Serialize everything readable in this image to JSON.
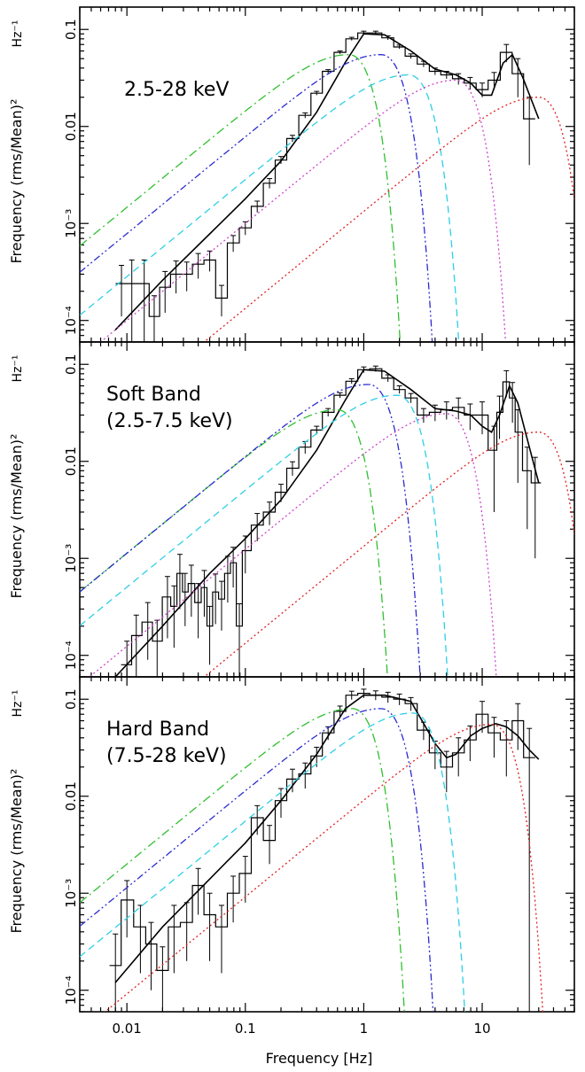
{
  "figure": {
    "xlabel": "Frequency [Hz]",
    "ylabel": "Frequency (rms/Mean)²",
    "yunit": "Hz⁻¹"
  },
  "chart_data": [
    {
      "type": "line",
      "panel_label": [
        "2.5-28 keV"
      ],
      "xscale": "log",
      "yscale": "log",
      "xlim": [
        0.004,
        60
      ],
      "ylim": [
        6e-05,
        0.17
      ],
      "xticks": [
        "0.01",
        "0.1",
        "1",
        "10"
      ],
      "yticks": [
        "10⁻⁴",
        "10⁻³",
        "0.01",
        "0.1"
      ],
      "series": [
        {
          "role": "data",
          "color": "#000000",
          "x": [
            0.009,
            0.011,
            0.014,
            0.017,
            0.021,
            0.026,
            0.032,
            0.04,
            0.05,
            0.063,
            0.079,
            0.1,
            0.126,
            0.16,
            0.2,
            0.25,
            0.32,
            0.4,
            0.5,
            0.63,
            0.79,
            1.0,
            1.26,
            1.6,
            2.0,
            2.5,
            3.2,
            4.0,
            5.0,
            6.3,
            7.9,
            10,
            12.6,
            16,
            20,
            25
          ],
          "y": [
            0.00024,
            0.00024,
            0.00024,
            0.00011,
            0.00022,
            0.0003,
            0.0003,
            0.00038,
            0.00042,
            0.00017,
            0.00063,
            0.0009,
            0.0015,
            0.0026,
            0.0045,
            0.0075,
            0.013,
            0.022,
            0.037,
            0.058,
            0.08,
            0.092,
            0.092,
            0.082,
            0.066,
            0.053,
            0.044,
            0.037,
            0.034,
            0.031,
            0.028,
            0.024,
            0.03,
            0.058,
            0.035,
            0.012
          ],
          "err": [
            0.00013,
            0.00018,
            0.00018,
            7e-05,
            0.0001,
            0.00011,
            0.0001,
            0.00011,
            0.0001,
            6e-05,
            0.00012,
            0.00014,
            0.0002,
            0.0003,
            0.0004,
            0.0006,
            0.0008,
            0.001,
            0.0015,
            0.002,
            0.003,
            0.004,
            0.004,
            0.004,
            0.003,
            0.003,
            0.003,
            0.003,
            0.003,
            0.004,
            0.004,
            0.004,
            0.006,
            0.012,
            0.015,
            0.008
          ]
        },
        {
          "role": "total-model",
          "color": "#000000",
          "x": [
            0.008,
            0.02,
            0.05,
            0.1,
            0.2,
            0.4,
            0.7,
            1.0,
            1.5,
            2.5,
            4,
            6,
            8,
            10,
            12,
            15,
            18,
            22,
            30
          ],
          "y": [
            8e-05,
            0.00026,
            0.00078,
            0.0018,
            0.0044,
            0.014,
            0.046,
            0.09,
            0.088,
            0.06,
            0.039,
            0.034,
            0.028,
            0.021,
            0.021,
            0.045,
            0.055,
            0.032,
            0.012
          ]
        },
        {
          "role": "component",
          "color": "#2fbf2f",
          "style": "dash-dot",
          "peak": 0.055,
          "nu_max": 0.75
        },
        {
          "role": "component",
          "color": "#2b2bd0",
          "style": "dash-dot-dot",
          "peak": 0.055,
          "nu_max": 1.4
        },
        {
          "role": "component",
          "color": "#2ccfe6",
          "style": "dashed",
          "peak": 0.034,
          "nu_max": 2.4
        },
        {
          "role": "component",
          "color": "#cc44cc",
          "style": "dotted",
          "peak": 0.03,
          "nu_max": 6.0
        },
        {
          "role": "component",
          "color": "#e02020",
          "style": "dotted",
          "peak": 0.02,
          "nu_max": 30
        }
      ]
    },
    {
      "type": "line",
      "panel_label": [
        "Soft Band",
        "(2.5-7.5 keV)"
      ],
      "xscale": "log",
      "yscale": "log",
      "xlim": [
        0.004,
        60
      ],
      "ylim": [
        6e-05,
        0.17
      ],
      "xticks": [
        "0.01",
        "0.1",
        "1",
        "10"
      ],
      "yticks": [
        "10⁻⁴",
        "10⁻³",
        "0.01",
        "0.1"
      ],
      "series": [
        {
          "role": "data",
          "color": "#000000",
          "x": [
            0.01,
            0.012,
            0.015,
            0.018,
            0.022,
            0.025,
            0.028,
            0.031,
            0.035,
            0.04,
            0.045,
            0.05,
            0.056,
            0.063,
            0.071,
            0.079,
            0.089,
            0.1,
            0.126,
            0.16,
            0.2,
            0.25,
            0.32,
            0.4,
            0.5,
            0.63,
            0.79,
            1.0,
            1.26,
            1.6,
            2.0,
            2.5,
            3.2,
            4.0,
            5.0,
            6.3,
            7.9,
            10,
            12.6,
            14,
            16,
            18,
            20,
            24,
            28
          ],
          "y": [
            8e-05,
            0.00016,
            0.00022,
            0.00014,
            0.0004,
            0.00032,
            0.0007,
            0.00045,
            0.00055,
            0.00035,
            0.0005,
            0.0002,
            0.00045,
            0.00038,
            0.0007,
            0.0009,
            0.0002,
            0.0012,
            0.0022,
            0.003,
            0.0048,
            0.0085,
            0.014,
            0.021,
            0.032,
            0.048,
            0.067,
            0.088,
            0.09,
            0.072,
            0.055,
            0.045,
            0.03,
            0.032,
            0.034,
            0.036,
            0.03,
            0.03,
            0.013,
            0.032,
            0.066,
            0.045,
            0.02,
            0.008,
            0.006
          ],
          "err": [
            6e-05,
            0.0001,
            0.00013,
            9e-05,
            0.00025,
            0.0002,
            0.0004,
            0.00025,
            0.0003,
            0.0002,
            0.00025,
            0.00012,
            0.00024,
            0.0002,
            0.00035,
            0.0004,
            0.00014,
            0.0005,
            0.0007,
            0.0008,
            0.001,
            0.0014,
            0.002,
            0.002,
            0.003,
            0.003,
            0.004,
            0.006,
            0.006,
            0.006,
            0.005,
            0.005,
            0.005,
            0.006,
            0.007,
            0.009,
            0.009,
            0.011,
            0.01,
            0.015,
            0.02,
            0.02,
            0.014,
            0.006,
            0.005
          ]
        },
        {
          "role": "total-model",
          "color": "#000000",
          "x": [
            0.008,
            0.02,
            0.05,
            0.1,
            0.2,
            0.4,
            0.7,
            1.0,
            1.5,
            2.5,
            4,
            6,
            8,
            10,
            12,
            14,
            17,
            20,
            25,
            30
          ],
          "y": [
            6e-05,
            0.0002,
            0.0007,
            0.0016,
            0.004,
            0.013,
            0.043,
            0.088,
            0.085,
            0.055,
            0.035,
            0.033,
            0.03,
            0.023,
            0.02,
            0.03,
            0.06,
            0.04,
            0.014,
            0.006
          ]
        },
        {
          "role": "component",
          "color": "#2fbf2f",
          "style": "dash-dot",
          "peak": 0.034,
          "nu_max": 0.6
        },
        {
          "role": "component",
          "color": "#2b2bd0",
          "style": "dash-dot-dot",
          "peak": 0.062,
          "nu_max": 1.1
        },
        {
          "role": "component",
          "color": "#2ccfe6",
          "style": "dashed",
          "peak": 0.048,
          "nu_max": 1.9
        },
        {
          "role": "component",
          "color": "#cc44cc",
          "style": "dotted",
          "peak": 0.031,
          "nu_max": 5.0
        },
        {
          "role": "component",
          "color": "#e02020",
          "style": "dotted",
          "peak": 0.02,
          "nu_max": 30
        }
      ]
    },
    {
      "type": "line",
      "panel_label": [
        "Hard Band",
        "(7.5-28 keV)"
      ],
      "xscale": "log",
      "yscale": "log",
      "xlim": [
        0.004,
        60
      ],
      "ylim": [
        6e-05,
        0.17
      ],
      "xticks": [
        "0.01",
        "0.1",
        "1",
        "10"
      ],
      "yticks": [
        "10⁻⁴",
        "10⁻³",
        "0.01",
        "0.1"
      ],
      "series": [
        {
          "role": "data",
          "color": "#000000",
          "x": [
            0.008,
            0.01,
            0.013,
            0.016,
            0.02,
            0.025,
            0.032,
            0.04,
            0.05,
            0.063,
            0.079,
            0.1,
            0.126,
            0.16,
            0.2,
            0.25,
            0.32,
            0.4,
            0.5,
            0.63,
            0.79,
            1.0,
            1.26,
            1.6,
            2.0,
            2.5,
            3.2,
            4.0,
            5.0,
            6.3,
            7.9,
            10,
            12.6,
            16,
            20,
            25
          ],
          "y": [
            0.00018,
            0.00085,
            0.00045,
            0.0003,
            0.00016,
            0.00045,
            0.0005,
            0.0012,
            0.0006,
            0.00045,
            0.001,
            0.0016,
            0.006,
            0.0035,
            0.009,
            0.015,
            0.017,
            0.026,
            0.045,
            0.075,
            0.11,
            0.115,
            0.11,
            0.105,
            0.1,
            0.09,
            0.048,
            0.028,
            0.02,
            0.028,
            0.038,
            0.07,
            0.045,
            0.038,
            0.06,
            0.025
          ],
          "err": [
            0.0002,
            0.0005,
            0.0003,
            0.0002,
            0.00012,
            0.0003,
            0.0003,
            0.0006,
            0.0004,
            0.0003,
            0.0005,
            0.0008,
            0.002,
            0.0015,
            0.003,
            0.004,
            0.005,
            0.006,
            0.007,
            0.01,
            0.011,
            0.012,
            0.012,
            0.013,
            0.013,
            0.014,
            0.01,
            0.009,
            0.009,
            0.012,
            0.015,
            0.025,
            0.02,
            0.022,
            0.03,
            0.025
          ]
        },
        {
          "role": "total-model",
          "color": "#000000",
          "x": [
            0.008,
            0.02,
            0.05,
            0.1,
            0.2,
            0.4,
            0.7,
            1.0,
            1.5,
            2.5,
            4,
            5,
            6,
            8,
            10,
            13,
            16,
            20,
            25,
            30
          ],
          "y": [
            0.00012,
            0.00045,
            0.0014,
            0.0033,
            0.009,
            0.027,
            0.08,
            0.11,
            0.11,
            0.095,
            0.035,
            0.025,
            0.027,
            0.042,
            0.05,
            0.056,
            0.052,
            0.042,
            0.03,
            0.024
          ]
        },
        {
          "role": "component",
          "color": "#2fbf2f",
          "style": "dash-dot",
          "peak": 0.08,
          "nu_max": 0.8
        },
        {
          "role": "component",
          "color": "#2b2bd0",
          "style": "dash-dot-dot",
          "peak": 0.08,
          "nu_max": 1.4
        },
        {
          "role": "component",
          "color": "#2ccfe6",
          "style": "dashed",
          "peak": 0.072,
          "nu_max": 2.6
        },
        {
          "role": "component",
          "color": "#e02020",
          "style": "dotted",
          "peak": 0.055,
          "nu_max": 12
        }
      ]
    }
  ]
}
